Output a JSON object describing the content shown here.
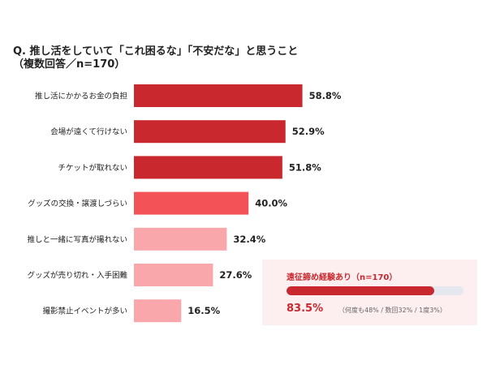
{
  "chart_data": {
    "type": "bar",
    "orientation": "horizontal",
    "title_line1": "Q. 推し活をしていて「これ困るな」「不安だな」と思うこと",
    "title_line2": "（複数回答／n=170）",
    "unit": "%",
    "xlim": [
      0,
      100
    ],
    "grid": false,
    "categories": [
      "推し活にかかるお金の負担",
      "会場が遠くて行けない",
      "チケットが取れない",
      "グッズの交換・譲渡しづらい",
      "推しと一緒に写真が撮れない",
      "グッズが売り切れ・入手困難",
      "撮影禁止イベントが多い"
    ],
    "values": [
      58.8,
      52.9,
      51.8,
      40.0,
      32.4,
      27.6,
      16.5
    ],
    "value_labels": [
      "58.8%",
      "52.9%",
      "51.8%",
      "40.0%",
      "32.4%",
      "27.6%",
      "16.5%"
    ],
    "colors": [
      "#c8282e",
      "#c8282e",
      "#c8282e",
      "#f35357",
      "#f9a7aa",
      "#f9a7aa",
      "#f9a7aa"
    ]
  },
  "inset": {
    "title": "遠征諦め経験あり（n=170）",
    "value": 83.5,
    "value_label": "83.5%",
    "breakdown": "（何度も48% / 数回32% / 1度3%）",
    "fill_color": "#c8282e",
    "track_color": "#e6e8ef",
    "background": "#fdeeef"
  }
}
